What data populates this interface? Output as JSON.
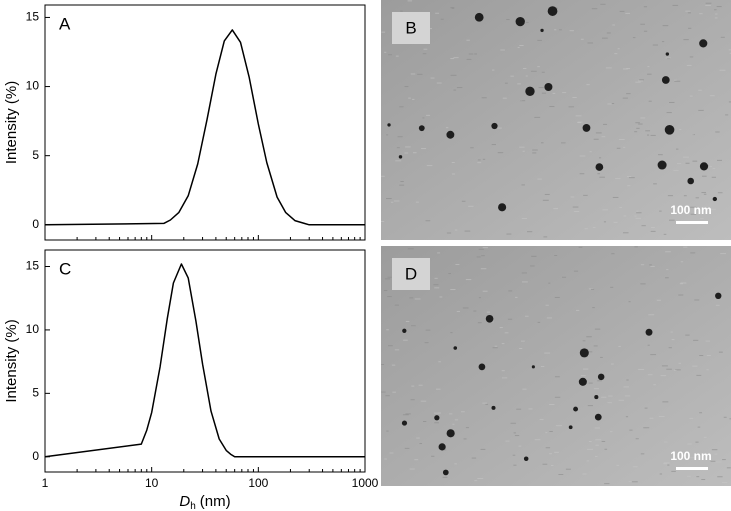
{
  "chart_data": [
    {
      "type": "line",
      "panel_label": "A",
      "y_label": "Intensity (%)",
      "x": [
        1,
        13,
        15,
        18,
        22,
        27,
        33,
        40,
        48,
        57,
        68,
        82,
        100,
        120,
        150,
        180,
        220,
        270,
        300,
        1000
      ],
      "values": [
        0,
        0.1,
        0.35,
        0.9,
        2.1,
        4.4,
        7.6,
        10.9,
        13.3,
        14.1,
        13.2,
        10.7,
        7.3,
        4.5,
        2.0,
        0.9,
        0.3,
        0.1,
        0,
        0
      ],
      "color": "#000000",
      "log_x": true,
      "xlim": [
        1,
        1000
      ],
      "xticks": [
        1,
        10,
        100,
        1000
      ],
      "xtick_labels": false,
      "ylim": [
        -1.1,
        15.9
      ],
      "yticks": [
        0,
        5,
        10,
        15
      ]
    },
    {
      "type": "line",
      "panel_label": "C",
      "y_label": "Intensity (%)",
      "x_label": {
        "symbol": "D",
        "subscript": "h",
        "unit": "(nm)"
      },
      "x": [
        1,
        8,
        9,
        10,
        12,
        14,
        16,
        19,
        22,
        26,
        30,
        36,
        43,
        50,
        55,
        60,
        1000
      ],
      "values": [
        0,
        1.0,
        2.1,
        3.5,
        7.1,
        10.9,
        13.7,
        15.2,
        14.1,
        10.7,
        7.3,
        3.6,
        1.4,
        0.5,
        0.2,
        0,
        0
      ],
      "color": "#000000",
      "log_x": true,
      "xlim": [
        1,
        1000
      ],
      "xticks": [
        1,
        10,
        100,
        1000
      ],
      "xtick_labels": true,
      "ylim": [
        -1.2,
        16.3
      ],
      "yticks": [
        0,
        5,
        10,
        15
      ]
    }
  ],
  "images": [
    {
      "panel_label": "B",
      "scale_bar": "100 nm"
    },
    {
      "panel_label": "D",
      "scale_bar": "100 nm"
    }
  ]
}
